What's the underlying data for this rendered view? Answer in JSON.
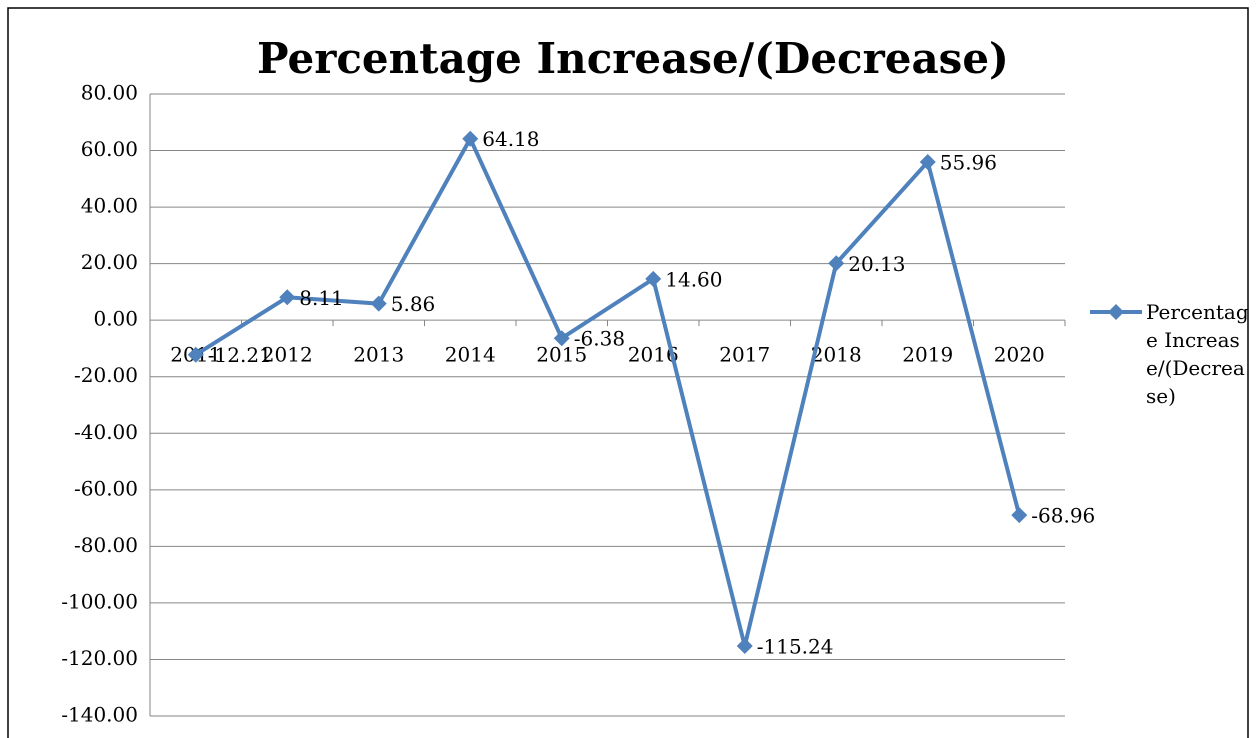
{
  "chart_data": {
    "type": "line",
    "title": "Percentage Increase/(Decrease)",
    "categories": [
      "2011",
      "2012",
      "2013",
      "2014",
      "2015",
      "2016",
      "2017",
      "2018",
      "2019",
      "2020"
    ],
    "series": [
      {
        "name": "Percentage Increase/(Decrease)",
        "color": "#4f81bd",
        "values": [
          -12.21,
          8.11,
          5.86,
          64.18,
          -6.38,
          14.6,
          -115.24,
          20.13,
          55.96,
          -68.96
        ],
        "value_labels": [
          "-12.21",
          "8.11",
          "5.86",
          "64.18",
          "-6.38",
          "14.60",
          "-115.24",
          "20.13",
          "55.96",
          "-68.96"
        ]
      }
    ],
    "ylim": [
      -140,
      80
    ],
    "yticks": [
      {
        "value": -140,
        "label": "-140.00"
      },
      {
        "value": -120,
        "label": "-120.00"
      },
      {
        "value": -100,
        "label": "-100.00"
      },
      {
        "value": -80,
        "label": "-80.00"
      },
      {
        "value": -60,
        "label": "-60.00"
      },
      {
        "value": -40,
        "label": "-40.00"
      },
      {
        "value": -20,
        "label": "-20.00"
      },
      {
        "value": 0,
        "label": "0.00"
      },
      {
        "value": 20,
        "label": "20.00"
      },
      {
        "value": 40,
        "label": "40.00"
      },
      {
        "value": 60,
        "label": "60.00"
      },
      {
        "value": 80,
        "label": "80.00"
      }
    ],
    "grid": true,
    "legend": "right"
  }
}
